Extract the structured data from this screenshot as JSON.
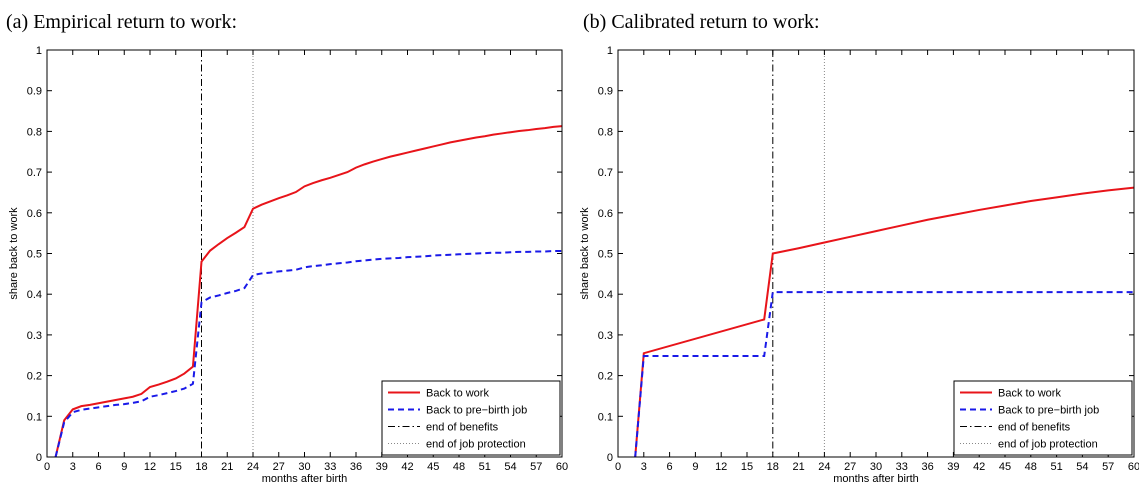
{
  "chart_data": [
    {
      "type": "line",
      "title": "(a) Empirical return to work:",
      "xlabel": "months after birth",
      "ylabel": "share back to work",
      "xlim": [
        0,
        60
      ],
      "ylim": [
        0,
        1
      ],
      "xticks": [
        0,
        3,
        6,
        9,
        12,
        15,
        18,
        21,
        24,
        27,
        30,
        33,
        36,
        39,
        42,
        45,
        48,
        51,
        54,
        57,
        60
      ],
      "yticks": [
        0,
        0.1,
        0.2,
        0.3,
        0.4,
        0.5,
        0.6,
        0.7,
        0.8,
        0.9,
        1
      ],
      "legend": "lower right",
      "series": [
        {
          "name": "Back to work",
          "color": "#e8141a",
          "style": "solid",
          "x": [
            1,
            2,
            3,
            4,
            5,
            6,
            7,
            8,
            9,
            10,
            11,
            12,
            13,
            14,
            15,
            16,
            17,
            18,
            19,
            20,
            21,
            22,
            23,
            24,
            25,
            26,
            27,
            28,
            29,
            30,
            31,
            32,
            33,
            34,
            35,
            36,
            37,
            38,
            39,
            40,
            41,
            42,
            43,
            44,
            45,
            46,
            47,
            48,
            49,
            50,
            51,
            52,
            53,
            54,
            55,
            56,
            57,
            58,
            59,
            60
          ],
          "values": [
            0,
            0.09,
            0.117,
            0.125,
            0.128,
            0.132,
            0.136,
            0.14,
            0.144,
            0.148,
            0.155,
            0.172,
            0.178,
            0.185,
            0.193,
            0.205,
            0.222,
            0.48,
            0.507,
            0.523,
            0.538,
            0.551,
            0.565,
            0.61,
            0.62,
            0.628,
            0.636,
            0.643,
            0.651,
            0.665,
            0.673,
            0.68,
            0.686,
            0.693,
            0.7,
            0.711,
            0.719,
            0.726,
            0.732,
            0.738,
            0.743,
            0.748,
            0.753,
            0.758,
            0.763,
            0.768,
            0.773,
            0.777,
            0.781,
            0.785,
            0.788,
            0.792,
            0.795,
            0.798,
            0.801,
            0.803,
            0.806,
            0.808,
            0.811,
            0.813
          ]
        },
        {
          "name": "Back to pre−birth job",
          "color": "#1a1ae8",
          "style": "dashed",
          "x": [
            1,
            2,
            3,
            4,
            5,
            6,
            7,
            8,
            9,
            10,
            11,
            12,
            13,
            14,
            15,
            16,
            17,
            18,
            19,
            20,
            21,
            22,
            23,
            24,
            25,
            26,
            27,
            28,
            29,
            30,
            31,
            32,
            33,
            34,
            35,
            36,
            37,
            38,
            39,
            40,
            41,
            42,
            43,
            44,
            45,
            46,
            47,
            48,
            49,
            50,
            51,
            52,
            53,
            54,
            55,
            56,
            57,
            58,
            59,
            60
          ],
          "values": [
            0,
            0.085,
            0.11,
            0.116,
            0.119,
            0.122,
            0.125,
            0.128,
            0.13,
            0.133,
            0.137,
            0.148,
            0.152,
            0.157,
            0.162,
            0.168,
            0.18,
            0.38,
            0.392,
            0.397,
            0.403,
            0.408,
            0.415,
            0.447,
            0.451,
            0.453,
            0.456,
            0.458,
            0.46,
            0.466,
            0.469,
            0.471,
            0.474,
            0.476,
            0.478,
            0.481,
            0.483,
            0.485,
            0.487,
            0.488,
            0.489,
            0.491,
            0.492,
            0.493,
            0.495,
            0.496,
            0.497,
            0.498,
            0.499,
            0.5,
            0.501,
            0.502,
            0.502,
            0.503,
            0.504,
            0.504,
            0.505,
            0.505,
            0.506,
            0.506
          ]
        }
      ],
      "vlines": [
        {
          "name": "end of benefits",
          "x": 18,
          "color": "#000000",
          "style": "dashdot"
        },
        {
          "name": "end of job protection",
          "x": 24,
          "color": "#888888",
          "style": "dotted"
        }
      ]
    },
    {
      "type": "line",
      "title": "(b) Calibrated return to work:",
      "xlabel": "months after birth",
      "ylabel": "share back to work",
      "xlim": [
        0,
        60
      ],
      "ylim": [
        0,
        1
      ],
      "xticks": [
        0,
        3,
        6,
        9,
        12,
        15,
        18,
        21,
        24,
        27,
        30,
        33,
        36,
        39,
        42,
        45,
        48,
        51,
        54,
        57,
        60
      ],
      "yticks": [
        0,
        0.1,
        0.2,
        0.3,
        0.4,
        0.5,
        0.6,
        0.7,
        0.8,
        0.9,
        1
      ],
      "legend": "lower right",
      "series": [
        {
          "name": "Back to work",
          "color": "#e8141a",
          "style": "solid",
          "x": [
            2,
            3,
            17,
            18,
            21,
            24,
            27,
            30,
            33,
            36,
            39,
            42,
            45,
            48,
            51,
            54,
            57,
            60
          ],
          "values": [
            0,
            0.255,
            0.338,
            0.5,
            0.513,
            0.527,
            0.541,
            0.555,
            0.569,
            0.583,
            0.595,
            0.607,
            0.618,
            0.629,
            0.638,
            0.647,
            0.655,
            0.662
          ]
        },
        {
          "name": "Back to pre−birth job",
          "color": "#1a1ae8",
          "style": "dashed",
          "x": [
            2,
            3,
            17,
            18,
            60
          ],
          "values": [
            0,
            0.248,
            0.248,
            0.405,
            0.405
          ]
        }
      ],
      "vlines": [
        {
          "name": "end of benefits",
          "x": 18,
          "color": "#000000",
          "style": "dashdot"
        },
        {
          "name": "end of job protection",
          "x": 24,
          "color": "#888888",
          "style": "dotted"
        }
      ]
    }
  ]
}
